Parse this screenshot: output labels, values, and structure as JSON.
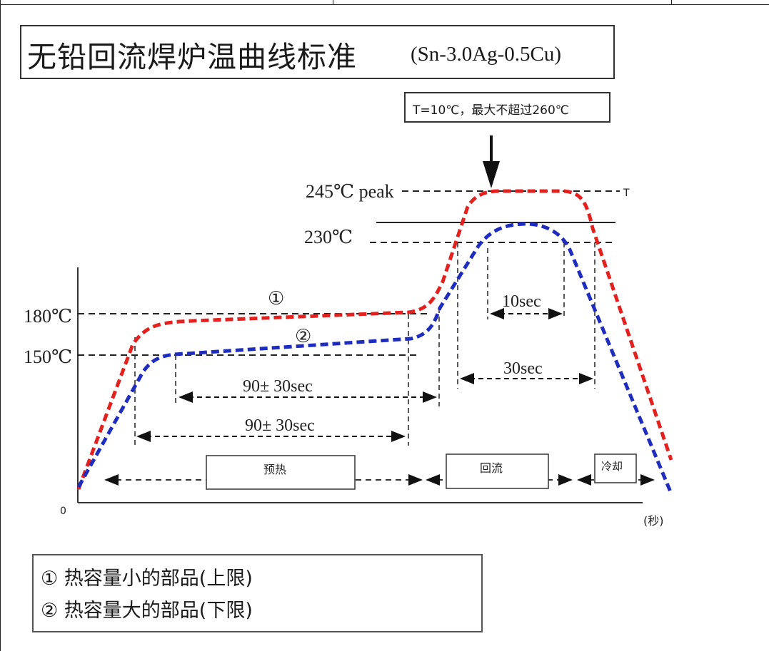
{
  "title": {
    "main": "无铅回流焊炉温曲线标准",
    "alloy": "(Sn-3.0Ag-0.5Cu)"
  },
  "note": "T=10℃，最大不超过260℃",
  "chart_data": {
    "type": "line",
    "y_labels": {
      "peak": "245℃ peak",
      "t230": "230℃",
      "t180": "180℃",
      "t150": "150℃"
    },
    "peak_marker": "T",
    "origin": "0",
    "x_unit": "(秒)",
    "curve_marks": {
      "upper": "①",
      "lower": "②"
    },
    "durations": {
      "preheat_lower": "90± 30sec",
      "preheat_upper": "90± 30sec",
      "above_230": "10sec",
      "above_230_upper": "30sec"
    },
    "zones": {
      "preheat": "预热",
      "reflow": "回流",
      "cool": "冷却"
    },
    "series": [
      {
        "name": "①",
        "color": "#e3211e"
      },
      {
        "name": "②",
        "color": "#1f2dbf"
      }
    ]
  },
  "legend": {
    "item1": "① 热容量小的部品(上限)",
    "item2": "② 热容量大的部品(下限)"
  }
}
